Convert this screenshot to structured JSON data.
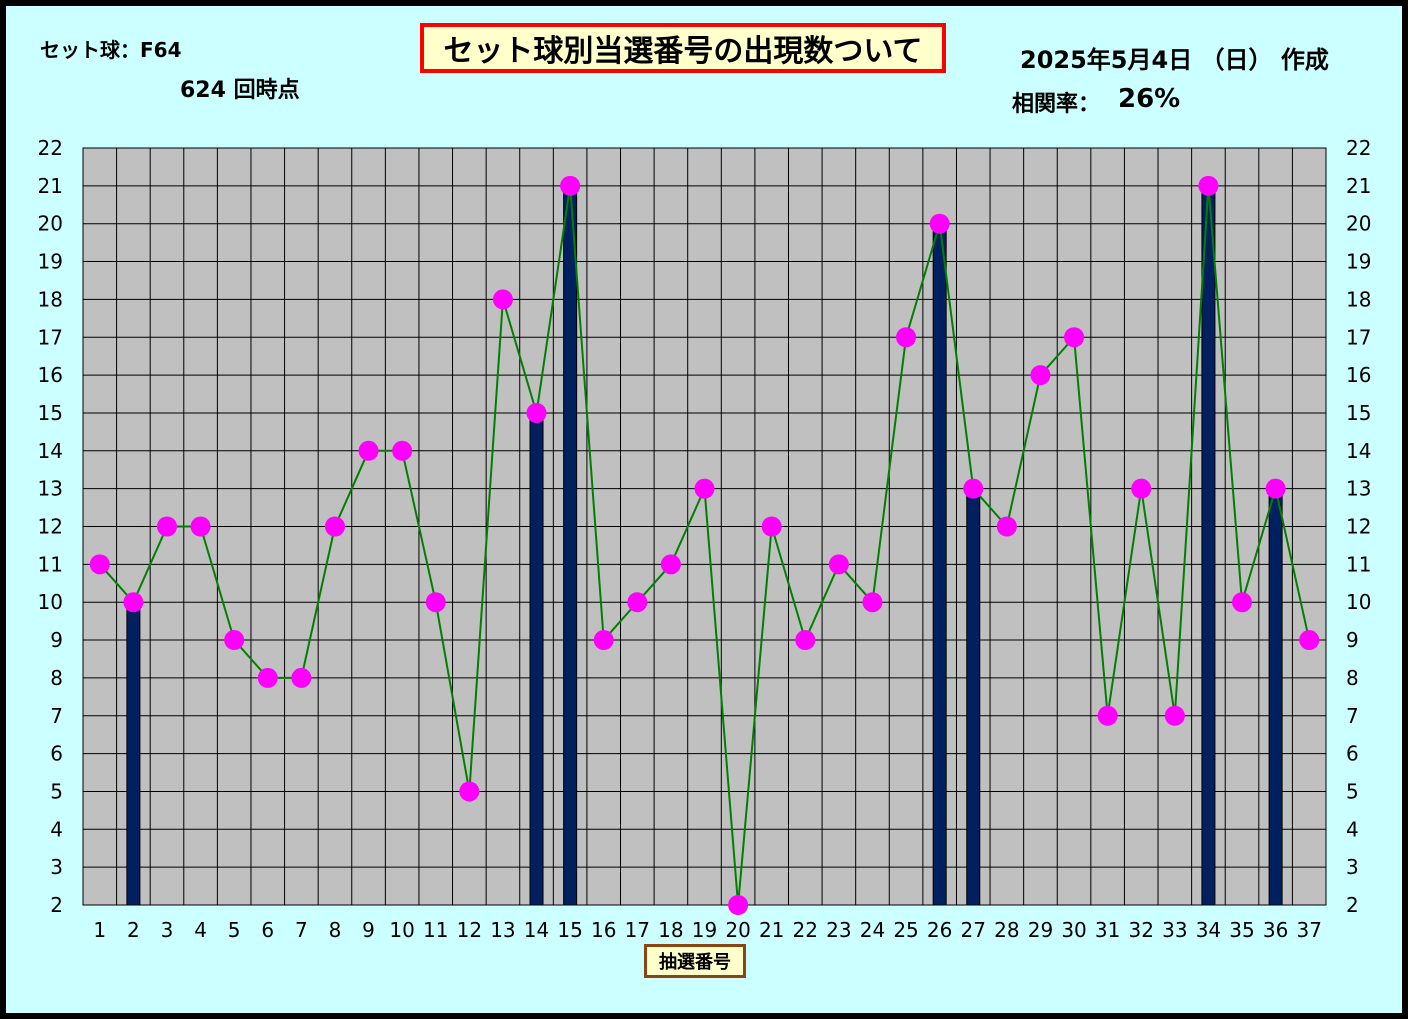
{
  "header": {
    "set_ball": "セット球：F64",
    "draw_point": "624  回時点",
    "title": "セット球別当選番号の出現数ついて",
    "date": "2025年5月4日 （日）  作成",
    "corr_label": "相関率：",
    "corr_value": "26%"
  },
  "colors": {
    "background": "#ccffff",
    "plot_area": "#c0c0c0",
    "bar": "#002060",
    "line": "#008000",
    "marker": "#ff00ff"
  },
  "chart_data": {
    "type": "bar",
    "categories": [
      "1",
      "2",
      "3",
      "4",
      "5",
      "6",
      "7",
      "8",
      "9",
      "10",
      "11",
      "12",
      "13",
      "14",
      "15",
      "16",
      "17",
      "18",
      "19",
      "20",
      "21",
      "22",
      "23",
      "24",
      "25",
      "26",
      "27",
      "28",
      "29",
      "30",
      "31",
      "32",
      "33",
      "34",
      "35",
      "36",
      "37"
    ],
    "xlabel": "抽選番号",
    "ylim": [
      2,
      22
    ],
    "yticks": [
      2,
      3,
      4,
      5,
      6,
      7,
      8,
      9,
      10,
      11,
      12,
      13,
      14,
      15,
      16,
      17,
      18,
      19,
      20,
      21,
      22
    ],
    "grid": true,
    "series": [
      {
        "type": "bar",
        "values": [
          null,
          10,
          null,
          null,
          null,
          null,
          null,
          null,
          null,
          null,
          null,
          null,
          null,
          15,
          21,
          null,
          null,
          null,
          null,
          null,
          null,
          null,
          null,
          null,
          null,
          20,
          13,
          null,
          null,
          null,
          null,
          null,
          null,
          21,
          null,
          13,
          null
        ]
      },
      {
        "type": "line",
        "values": [
          11,
          10,
          12,
          12,
          9,
          8,
          8,
          12,
          14,
          14,
          10,
          5,
          18,
          15,
          21,
          9,
          10,
          11,
          13,
          2,
          12,
          9,
          11,
          10,
          17,
          20,
          13,
          12,
          16,
          17,
          7,
          13,
          7,
          21,
          10,
          13,
          9
        ]
      }
    ]
  }
}
